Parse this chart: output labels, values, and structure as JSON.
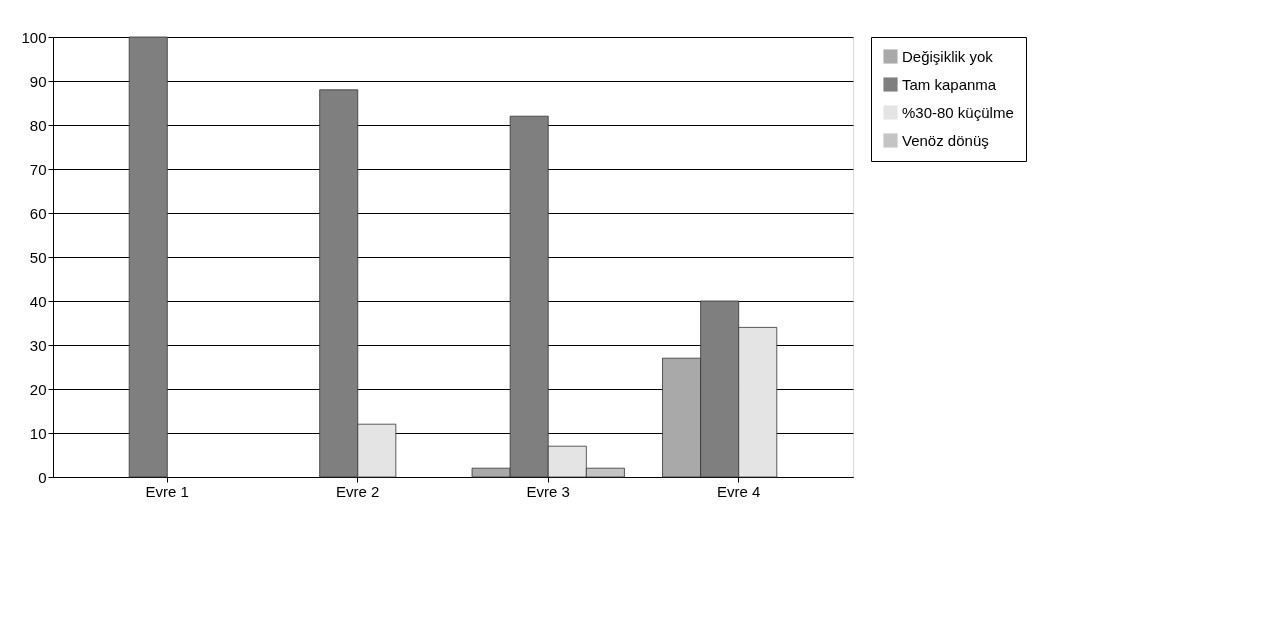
{
  "chart_data": {
    "type": "bar",
    "categories": [
      "Evre 1",
      "Evre 2",
      "Evre 3",
      "Evre 4"
    ],
    "series": [
      {
        "name": "Değişiklik yok",
        "color": "#a9a9a9",
        "values": [
          0,
          0,
          2,
          27
        ]
      },
      {
        "name": "Tam kapanma",
        "color": "#7f7f7f",
        "values": [
          100,
          88,
          82,
          40
        ]
      },
      {
        "name": "%30-80 küçülme",
        "color": "#e4e4e4",
        "values": [
          0,
          12,
          7,
          34
        ]
      },
      {
        "name": "Venöz dönüş",
        "color": "#c4c4c4",
        "values": [
          0,
          0,
          2,
          0
        ]
      }
    ],
    "ylim": [
      0,
      100
    ],
    "yticks": [
      0,
      10,
      20,
      30,
      40,
      50,
      60,
      70,
      80,
      90,
      100
    ],
    "grid": "y",
    "legend": "right"
  }
}
